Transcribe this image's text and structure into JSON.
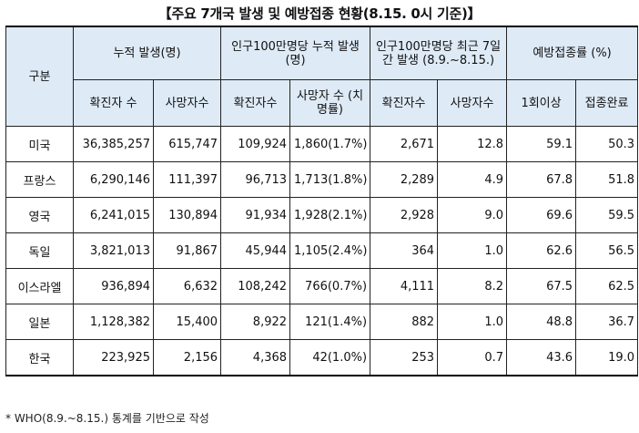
{
  "title": "【주요 7개국 발생 및 예방접종 현황(8.15. 0시 기준)】",
  "headers": {
    "category": "구분",
    "cumulative": "누적 발생(명)",
    "per_million_cumulative": "인구100만명당 누적 발생(명)",
    "per_million_recent": "인구100만명당 최근 7일간 발생 (8.9.~8.15.)",
    "vaccination": "예방접종률 (%)",
    "confirmed": "확진자 수",
    "deaths": "사망자수",
    "pm_confirmed": "확진자수",
    "pm_deaths": "사망자 수 (치명률)",
    "recent_confirmed": "확진자수",
    "recent_deaths": "사망자수",
    "dose1": "1회이상",
    "complete": "접종완료"
  },
  "rows": [
    {
      "country": "미국",
      "confirmed": "36,385,257",
      "deaths": "615,747",
      "pm_confirmed": "109,924",
      "pm_deaths": "1,860(1.7%)",
      "recent_confirmed": "2,671",
      "recent_deaths": "12.8",
      "dose1": "59.1",
      "complete": "50.3"
    },
    {
      "country": "프랑스",
      "confirmed": "6,290,146",
      "deaths": "111,397",
      "pm_confirmed": "96,713",
      "pm_deaths": "1,713(1.8%)",
      "recent_confirmed": "2,289",
      "recent_deaths": "4.9",
      "dose1": "67.8",
      "complete": "51.8"
    },
    {
      "country": "영국",
      "confirmed": "6,241,015",
      "deaths": "130,894",
      "pm_confirmed": "91,934",
      "pm_deaths": "1,928(2.1%)",
      "recent_confirmed": "2,928",
      "recent_deaths": "9.0",
      "dose1": "69.6",
      "complete": "59.5"
    },
    {
      "country": "독일",
      "confirmed": "3,821,013",
      "deaths": "91,867",
      "pm_confirmed": "45,944",
      "pm_deaths": "1,105(2.4%)",
      "recent_confirmed": "364",
      "recent_deaths": "1.0",
      "dose1": "62.6",
      "complete": "56.5"
    },
    {
      "country": "이스라엘",
      "confirmed": "936,894",
      "deaths": "6,632",
      "pm_confirmed": "108,242",
      "pm_deaths": "766(0.7%)",
      "recent_confirmed": "4,111",
      "recent_deaths": "8.2",
      "dose1": "67.5",
      "complete": "62.5"
    },
    {
      "country": "일본",
      "confirmed": "1,128,382",
      "deaths": "15,400",
      "pm_confirmed": "8,922",
      "pm_deaths": "121(1.4%)",
      "recent_confirmed": "882",
      "recent_deaths": "1.0",
      "dose1": "48.8",
      "complete": "36.7"
    },
    {
      "country": "한국",
      "confirmed": "223,925",
      "deaths": "2,156",
      "pm_confirmed": "4,368",
      "pm_deaths": "42(1.0%)",
      "recent_confirmed": "253",
      "recent_deaths": "0.7",
      "dose1": "43.6",
      "complete": "19.0"
    }
  ],
  "footnote": "* WHO(8.9.~8.15.) 통계를 기반으로 작성"
}
